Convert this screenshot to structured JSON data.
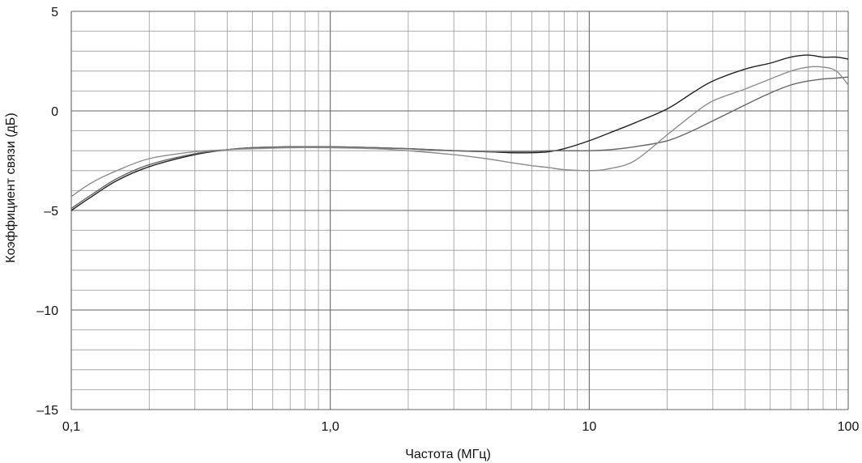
{
  "chart_data": {
    "type": "line",
    "title": "",
    "xlabel": "Частота   (МГц)",
    "ylabel": "Коэффициент связи   (дБ)",
    "x_scale": "log",
    "xlim": [
      0.1,
      100
    ],
    "ylim": [
      -15,
      5
    ],
    "grid": true,
    "x_ticks": [
      {
        "value": 0.1,
        "label": "0,1"
      },
      {
        "value": 1,
        "label": "1,0"
      },
      {
        "value": 10,
        "label": "10"
      },
      {
        "value": 100,
        "label": "100"
      }
    ],
    "y_ticks": [
      {
        "value": 5,
        "label": "5"
      },
      {
        "value": 0,
        "label": "0"
      },
      {
        "value": -5,
        "label": "–5"
      },
      {
        "value": -10,
        "label": "–10"
      },
      {
        "value": -15,
        "label": "–15"
      }
    ],
    "series": [
      {
        "color": "#222222",
        "x": [
          0.1,
          0.12,
          0.15,
          0.2,
          0.3,
          0.4,
          0.5,
          0.7,
          1,
          1.5,
          2,
          3,
          4,
          5,
          6,
          7,
          8,
          10,
          12,
          15,
          20,
          25,
          30,
          40,
          50,
          60,
          70,
          80,
          90,
          100
        ],
        "y": [
          -5.0,
          -4.3,
          -3.5,
          -2.8,
          -2.2,
          -1.95,
          -1.85,
          -1.8,
          -1.8,
          -1.85,
          -1.9,
          -2.0,
          -2.05,
          -2.1,
          -2.1,
          -2.05,
          -1.9,
          -1.5,
          -1.1,
          -0.6,
          0.1,
          0.9,
          1.5,
          2.1,
          2.4,
          2.7,
          2.8,
          2.7,
          2.7,
          2.6
        ]
      },
      {
        "color": "#666666",
        "x": [
          0.1,
          0.12,
          0.15,
          0.2,
          0.3,
          0.4,
          0.5,
          0.7,
          1,
          1.5,
          2,
          3,
          4,
          5,
          6,
          7,
          8,
          10,
          12,
          15,
          20,
          25,
          30,
          40,
          50,
          60,
          70,
          80,
          90,
          100
        ],
        "y": [
          -4.9,
          -4.2,
          -3.4,
          -2.7,
          -2.15,
          -1.95,
          -1.85,
          -1.8,
          -1.8,
          -1.85,
          -1.9,
          -2.0,
          -2.05,
          -2.05,
          -2.05,
          -2.0,
          -2.0,
          -2.0,
          -1.95,
          -1.8,
          -1.5,
          -1.0,
          -0.5,
          0.3,
          0.9,
          1.3,
          1.5,
          1.6,
          1.65,
          1.7
        ]
      },
      {
        "color": "#8c8c8c",
        "x": [
          0.1,
          0.12,
          0.15,
          0.2,
          0.3,
          0.4,
          0.5,
          0.7,
          1,
          1.5,
          2,
          3,
          4,
          5,
          6,
          7,
          8,
          10,
          12,
          15,
          20,
          25,
          30,
          40,
          50,
          60,
          70,
          80,
          90,
          100
        ],
        "y": [
          -4.3,
          -3.6,
          -3.0,
          -2.4,
          -2.05,
          -1.95,
          -1.9,
          -1.85,
          -1.85,
          -1.9,
          -2.0,
          -2.2,
          -2.4,
          -2.6,
          -2.75,
          -2.85,
          -2.95,
          -3.0,
          -2.9,
          -2.5,
          -1.2,
          -0.2,
          0.5,
          1.1,
          1.6,
          2.0,
          2.2,
          2.2,
          2.0,
          1.3
        ]
      }
    ]
  }
}
